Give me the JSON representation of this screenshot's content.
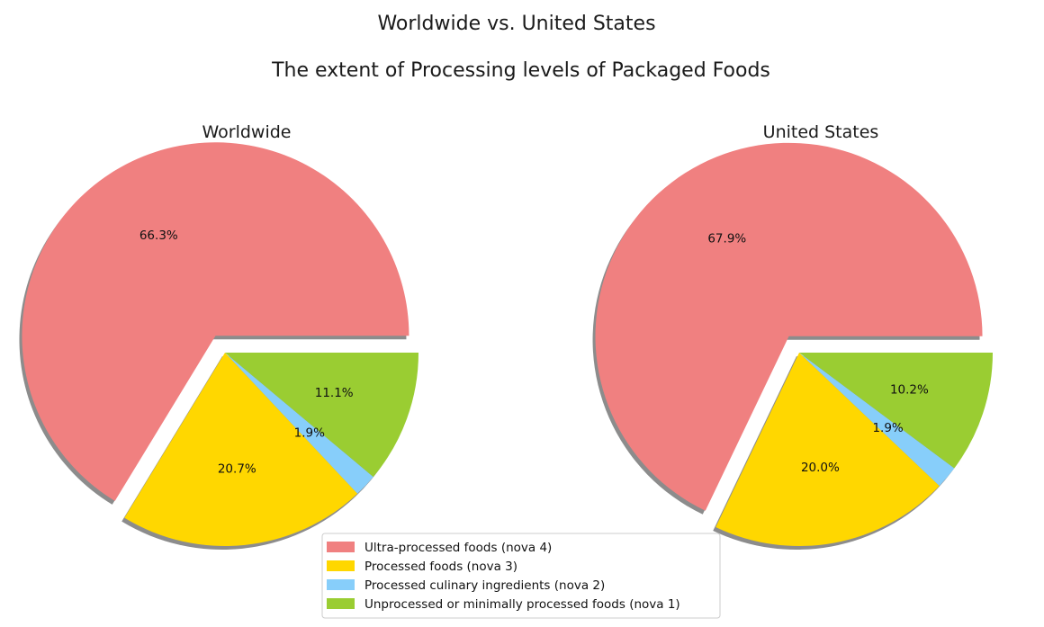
{
  "suptitle": "Worldwide vs. United States",
  "title": "The extent of Processing levels of Packaged Foods",
  "chart_data": [
    {
      "type": "pie",
      "title": "Worldwide",
      "labels": [
        "Ultra-processed foods (nova 4)",
        "Processed foods (nova 3)",
        "Processed culinary ingredients (nova 2)",
        "Unprocessed or minimally processed foods (nova 1)"
      ],
      "values": [
        66.3,
        20.7,
        1.9,
        11.1
      ],
      "value_labels": [
        "66.3%",
        "20.7%",
        "1.9%",
        "11.1%"
      ],
      "colors": [
        "#f08080",
        "#ffd700",
        "#87cefa",
        "#9acd32"
      ],
      "exploded": [
        "Ultra-processed foods (nova 4)"
      ],
      "shadow": true
    },
    {
      "type": "pie",
      "title": "United States",
      "labels": [
        "Ultra-processed foods (nova 4)",
        "Processed foods (nova 3)",
        "Processed culinary ingredients (nova 2)",
        "Unprocessed or minimally processed foods (nova 1)"
      ],
      "values": [
        67.9,
        20.0,
        1.9,
        10.2
      ],
      "value_labels": [
        "67.9%",
        "20.0%",
        "1.9%",
        "10.2%"
      ],
      "colors": [
        "#f08080",
        "#ffd700",
        "#87cefa",
        "#9acd32"
      ],
      "exploded": [
        "Ultra-processed foods (nova 4)"
      ],
      "shadow": true
    }
  ],
  "legend": {
    "position": "bottom-center",
    "items": [
      {
        "label": "Ultra-processed foods (nova 4)",
        "color": "#f08080"
      },
      {
        "label": "Processed foods (nova 3)",
        "color": "#ffd700"
      },
      {
        "label": "Processed culinary ingredients (nova 2)",
        "color": "#87cefa"
      },
      {
        "label": "Unprocessed or minimally processed foods (nova 1)",
        "color": "#9acd32"
      }
    ]
  }
}
